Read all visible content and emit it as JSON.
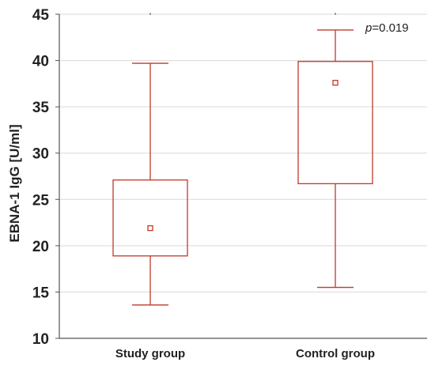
{
  "chart_data": {
    "type": "box",
    "categories": [
      "Study group",
      "Control group"
    ],
    "boxes": [
      {
        "category": "Study group",
        "whisker_low": 13.6,
        "q1": 18.9,
        "median_marker": 21.9,
        "q3": 27.1,
        "whisker_high": 39.7
      },
      {
        "category": "Control group",
        "whisker_low": 15.5,
        "q1": 26.7,
        "median_marker": 37.6,
        "q3": 39.9,
        "whisker_high": 43.3
      }
    ],
    "ylabel": "EBNA-1 IgG [U/ml]",
    "xlabel": "",
    "ylim": [
      10,
      45
    ],
    "yticks": [
      10,
      15,
      20,
      25,
      30,
      35,
      40,
      45
    ],
    "grid": true,
    "annotation": {
      "text_italic": "p",
      "text_rest": "=0.019"
    },
    "colors": {
      "box": "#c0392b",
      "grid": "#d9d9d9",
      "axis": "#555555"
    }
  }
}
